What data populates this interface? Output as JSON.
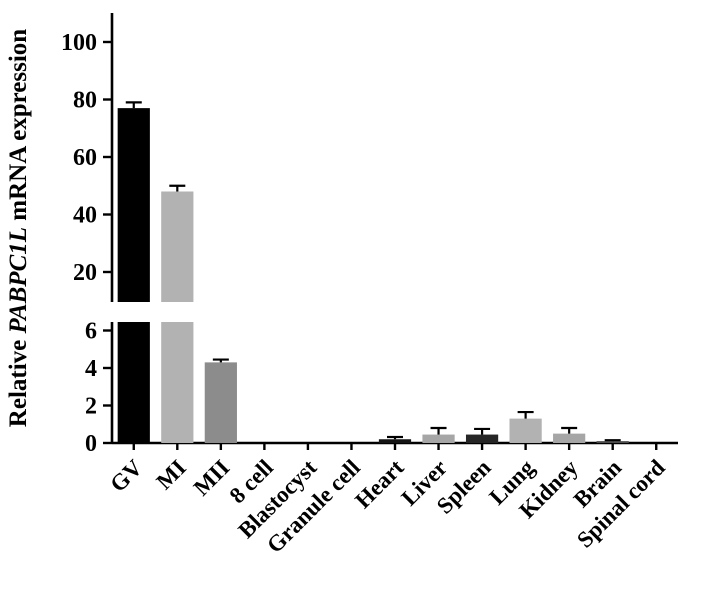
{
  "figure": {
    "background": "#ffffff",
    "axis_color": "#000000"
  },
  "chart_data": {
    "type": "bar",
    "title": "",
    "ylabel_plain": "Relative PABPC1L mRNA expression",
    "ylabel_parts": [
      {
        "text": "Relative ",
        "italic": false
      },
      {
        "text": "PABPC1L",
        "italic": true
      },
      {
        "text": " mRNA expression",
        "italic": false
      }
    ],
    "categories": [
      "GV",
      "MI",
      "MII",
      "8 cell",
      "Blastocyst",
      "Granule cell",
      "Heart",
      "Liver",
      "Spleen",
      "Lung",
      "Kidney",
      "Brain",
      "Spinal cord"
    ],
    "values": [
      77,
      48,
      4.3,
      0,
      0,
      0,
      0.2,
      0.45,
      0.45,
      1.3,
      0.5,
      0.1,
      0
    ],
    "errors": [
      2,
      2,
      0.15,
      0,
      0,
      0,
      0.12,
      0.35,
      0.3,
      0.35,
      0.3,
      0.05,
      0
    ],
    "bar_colors": [
      "#000000",
      "#b2b2b2",
      "#8c8c8c",
      "#000000",
      "#000000",
      "#000000",
      "#141414",
      "#a6a6a6",
      "#262626",
      "#b2b2b2",
      "#a6a6a6",
      "#4d4d4d",
      "#000000"
    ],
    "axis_break": {
      "top_panel": {
        "ticks": [
          20,
          40,
          60,
          80,
          100
        ],
        "min_visible": 10
      },
      "bottom_panel": {
        "ticks": [
          0,
          2,
          4,
          6
        ],
        "min": 0
      }
    },
    "grid": false,
    "legend": false,
    "error_bar_style": "upper-cap"
  }
}
